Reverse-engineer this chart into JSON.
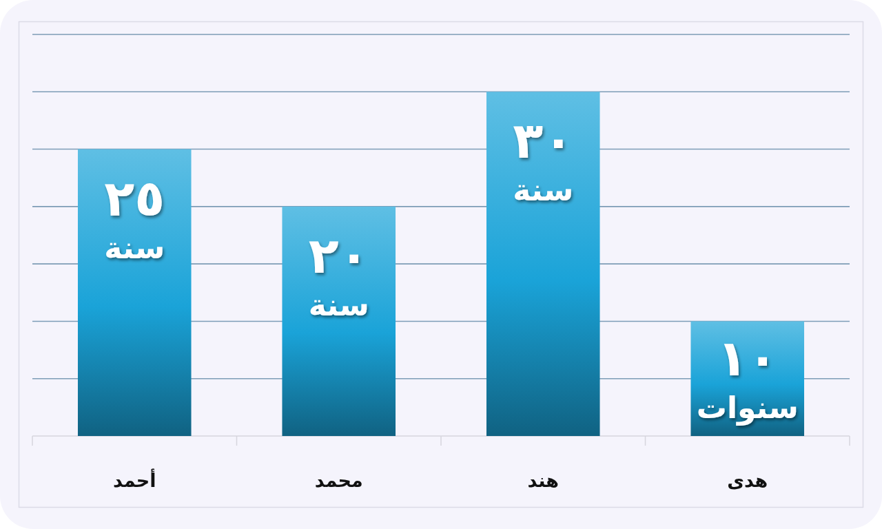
{
  "chart_data": {
    "type": "bar",
    "categories": [
      "أحمد",
      "محمد",
      "هند",
      "هدى"
    ],
    "values": [
      25,
      20,
      30,
      10
    ],
    "color": "#1aa3d8",
    "ylim": [
      0,
      35
    ],
    "yticks": [
      {
        "value": 0,
        "label": null
      },
      {
        "value": 5,
        "label": null
      },
      {
        "value": 10,
        "label": null
      },
      {
        "value": 15,
        "label": null
      },
      {
        "value": 20,
        "label": null
      },
      {
        "value": 25,
        "label": null
      },
      {
        "value": 30,
        "label": null
      },
      {
        "value": 35,
        "label": null
      }
    ],
    "grid": "y",
    "tick_labels": "x",
    "value_labels": [
      "٢٥ سنة",
      "٢٠ سنة",
      "٣٠ سنة",
      "١٠ سنوات"
    ]
  }
}
